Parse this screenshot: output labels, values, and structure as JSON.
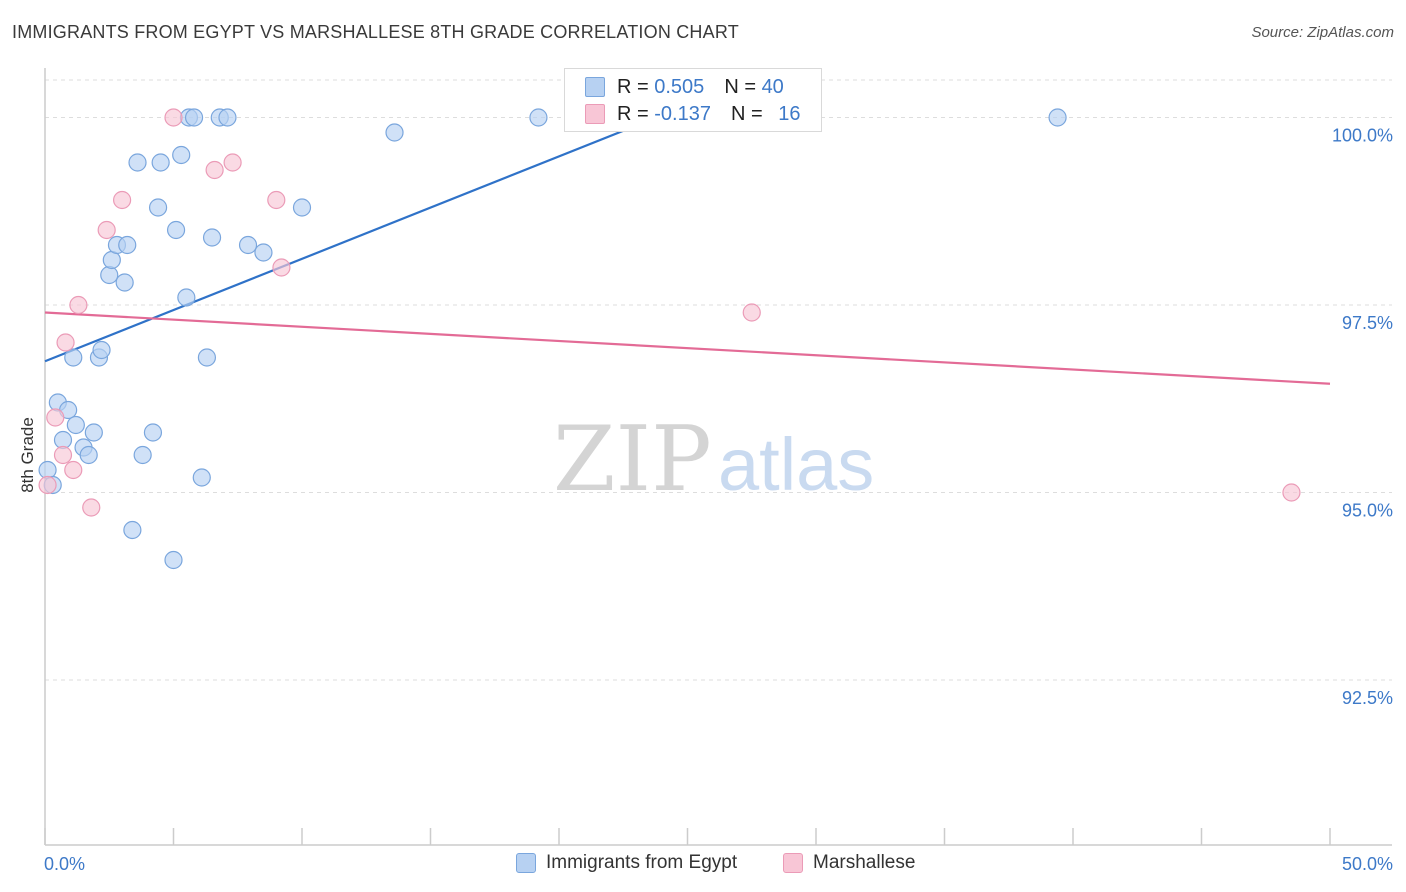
{
  "title": "IMMIGRANTS FROM EGYPT VS MARSHALLESE 8TH GRADE CORRELATION CHART",
  "source": "Source: ZipAtlas.com",
  "watermark": {
    "zip": "ZIP",
    "atlas": "atlas"
  },
  "legend": {
    "rows": [
      {
        "r_label": "R = ",
        "r_value": "0.505",
        "n_label": "N = ",
        "n_value": "40"
      },
      {
        "r_label": "R = ",
        "r_value": "-0.137",
        "n_label": "N = ",
        "n_value": "16"
      }
    ]
  },
  "bottom_legend": [
    "Immigrants from Egypt",
    "Marshallese"
  ],
  "colors": {
    "blue_fill": "#b7d1f2",
    "blue_stroke": "#7aa6dd",
    "blue_line": "#2f72c8",
    "pink_fill": "#f8c6d6",
    "pink_stroke": "#eb9bb7",
    "pink_line": "#e36b96",
    "axis_text": "#3d79c8",
    "grid": "#dddddd"
  },
  "chart_data": {
    "type": "scatter",
    "title": "IMMIGRANTS FROM EGYPT VS MARSHALLESE 8TH GRADE CORRELATION CHART",
    "xlabel": "",
    "ylabel": "8th Grade",
    "xlim": [
      0,
      50
    ],
    "ylim": [
      90.3,
      100.5
    ],
    "x_tick_labels": [
      "0.0%",
      "50.0%"
    ],
    "y_ticks": [
      92.5,
      95.0,
      97.5,
      100.0
    ],
    "y_tick_labels": [
      "92.5%",
      "95.0%",
      "97.5%",
      "100.0%"
    ],
    "series": [
      {
        "name": "Immigrants from Egypt",
        "color": "#b7d1f2",
        "points": [
          [
            0.1,
            95.3
          ],
          [
            0.3,
            95.1
          ],
          [
            0.5,
            96.2
          ],
          [
            0.7,
            95.7
          ],
          [
            0.9,
            96.1
          ],
          [
            1.1,
            96.8
          ],
          [
            1.2,
            95.9
          ],
          [
            1.5,
            95.6
          ],
          [
            1.7,
            95.5
          ],
          [
            1.9,
            95.8
          ],
          [
            2.1,
            96.8
          ],
          [
            2.2,
            96.9
          ],
          [
            2.5,
            97.9
          ],
          [
            2.6,
            98.1
          ],
          [
            2.8,
            98.3
          ],
          [
            3.1,
            97.8
          ],
          [
            3.2,
            98.3
          ],
          [
            3.4,
            94.5
          ],
          [
            3.6,
            99.4
          ],
          [
            3.8,
            95.5
          ],
          [
            4.2,
            95.8
          ],
          [
            4.4,
            98.8
          ],
          [
            4.5,
            99.4
          ],
          [
            5.0,
            94.1
          ],
          [
            5.1,
            98.5
          ],
          [
            5.3,
            99.5
          ],
          [
            5.5,
            97.6
          ],
          [
            5.6,
            100.0
          ],
          [
            5.8,
            100.0
          ],
          [
            6.1,
            95.2
          ],
          [
            6.3,
            96.8
          ],
          [
            6.5,
            98.4
          ],
          [
            6.8,
            100.0
          ],
          [
            7.1,
            100.0
          ],
          [
            7.9,
            98.3
          ],
          [
            8.5,
            98.2
          ],
          [
            10.0,
            98.8
          ],
          [
            13.6,
            99.8
          ],
          [
            19.2,
            100.0
          ],
          [
            39.4,
            100.0
          ]
        ],
        "trend": {
          "x": [
            0,
            23.8
          ],
          "y": [
            96.75,
            100.0
          ]
        }
      },
      {
        "name": "Marshallese",
        "color": "#f8c6d6",
        "points": [
          [
            0.1,
            95.1
          ],
          [
            0.4,
            96.0
          ],
          [
            0.7,
            95.5
          ],
          [
            0.8,
            97.0
          ],
          [
            1.1,
            95.3
          ],
          [
            1.3,
            97.5
          ],
          [
            1.8,
            94.8
          ],
          [
            2.4,
            98.5
          ],
          [
            3.0,
            98.9
          ],
          [
            5.0,
            100.0
          ],
          [
            6.6,
            99.3
          ],
          [
            7.3,
            99.4
          ],
          [
            9.0,
            98.9
          ],
          [
            9.2,
            98.0
          ],
          [
            27.5,
            97.4
          ],
          [
            48.5,
            95.0
          ]
        ],
        "trend": {
          "x": [
            0,
            50
          ],
          "y": [
            97.4,
            96.45
          ]
        }
      }
    ]
  }
}
